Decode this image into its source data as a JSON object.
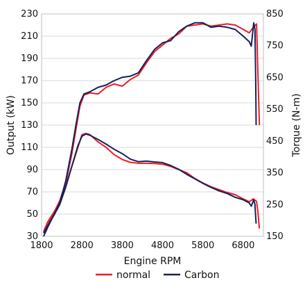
{
  "chart_data": {
    "type": "line",
    "xlabel": "Engine RPM",
    "ylabel_left": "Output (kW)",
    "ylabel_right": "Torque (N-m)",
    "xlim": [
      1800,
      7300
    ],
    "ylim_left": [
      30,
      230
    ],
    "ylim_right": [
      150,
      850
    ],
    "x_ticks": [
      "1800",
      "2800",
      "3800",
      "4800",
      "5800",
      "6800"
    ],
    "y_ticks_left": [
      "30",
      "50",
      "70",
      "90",
      "110",
      "130",
      "150",
      "170",
      "190",
      "210",
      "230"
    ],
    "y_ticks_right": [
      "150",
      "250",
      "350",
      "450",
      "550",
      "650",
      "750",
      "850"
    ],
    "grid": true,
    "legend_position": "bottom",
    "series": [
      {
        "name": "normal",
        "color": "#ee1c25",
        "output_kW": [
          [
            1850,
            33
          ],
          [
            1950,
            40
          ],
          [
            2100,
            51
          ],
          [
            2250,
            62
          ],
          [
            2400,
            78
          ],
          [
            2550,
            104
          ],
          [
            2650,
            126
          ],
          [
            2750,
            147
          ],
          [
            2850,
            157
          ],
          [
            3000,
            159
          ],
          [
            3200,
            158
          ],
          [
            3400,
            164
          ],
          [
            3600,
            167
          ],
          [
            3800,
            165
          ],
          [
            4000,
            171
          ],
          [
            4200,
            175
          ],
          [
            4400,
            186
          ],
          [
            4600,
            196
          ],
          [
            4800,
            202
          ],
          [
            5000,
            208
          ],
          [
            5200,
            212
          ],
          [
            5400,
            219
          ],
          [
            5600,
            220
          ],
          [
            5800,
            221
          ],
          [
            6000,
            219
          ],
          [
            6200,
            220
          ],
          [
            6400,
            221
          ],
          [
            6600,
            220
          ],
          [
            6800,
            216
          ],
          [
            6950,
            213
          ],
          [
            7050,
            218
          ],
          [
            7130,
            221
          ],
          [
            7160,
            180
          ],
          [
            7200,
            130
          ]
        ],
        "torque_Nm": [
          [
            1850,
            165
          ],
          [
            1950,
            195
          ],
          [
            2100,
            225
          ],
          [
            2250,
            258
          ],
          [
            2400,
            310
          ],
          [
            2550,
            370
          ],
          [
            2700,
            430
          ],
          [
            2800,
            470
          ],
          [
            2900,
            474
          ],
          [
            3000,
            470
          ],
          [
            3200,
            447
          ],
          [
            3400,
            430
          ],
          [
            3600,
            407
          ],
          [
            3800,
            392
          ],
          [
            4000,
            383
          ],
          [
            4200,
            380
          ],
          [
            4400,
            380
          ],
          [
            4600,
            379
          ],
          [
            4800,
            377
          ],
          [
            5000,
            370
          ],
          [
            5200,
            360
          ],
          [
            5400,
            350
          ],
          [
            5600,
            332
          ],
          [
            5800,
            318
          ],
          [
            6000,
            306
          ],
          [
            6200,
            297
          ],
          [
            6400,
            288
          ],
          [
            6600,
            281
          ],
          [
            6800,
            268
          ],
          [
            6950,
            259
          ],
          [
            7050,
            268
          ],
          [
            7130,
            260
          ],
          [
            7160,
            230
          ],
          [
            7200,
            175
          ]
        ]
      },
      {
        "name": "Carbon",
        "color": "#14215a",
        "output_kW": [
          [
            1850,
            30
          ],
          [
            1950,
            38
          ],
          [
            2100,
            49
          ],
          [
            2250,
            60
          ],
          [
            2400,
            80
          ],
          [
            2550,
            108
          ],
          [
            2650,
            130
          ],
          [
            2750,
            150
          ],
          [
            2850,
            158
          ],
          [
            3000,
            160
          ],
          [
            3200,
            164
          ],
          [
            3400,
            166
          ],
          [
            3600,
            170
          ],
          [
            3800,
            173
          ],
          [
            4000,
            174
          ],
          [
            4200,
            177
          ],
          [
            4400,
            188
          ],
          [
            4600,
            198
          ],
          [
            4800,
            204
          ],
          [
            5000,
            206
          ],
          [
            5200,
            214
          ],
          [
            5400,
            219
          ],
          [
            5600,
            222
          ],
          [
            5800,
            222
          ],
          [
            6000,
            218
          ],
          [
            6200,
            219
          ],
          [
            6400,
            218
          ],
          [
            6600,
            216
          ],
          [
            6800,
            210
          ],
          [
            6950,
            205
          ],
          [
            7000,
            201
          ],
          [
            7060,
            222
          ],
          [
            7090,
            216
          ],
          [
            7110,
            170
          ],
          [
            7120,
            130
          ]
        ],
        "torque_Nm": [
          [
            1850,
            160
          ],
          [
            1950,
            183
          ],
          [
            2100,
            215
          ],
          [
            2250,
            250
          ],
          [
            2400,
            305
          ],
          [
            2550,
            370
          ],
          [
            2700,
            435
          ],
          [
            2800,
            465
          ],
          [
            2900,
            472
          ],
          [
            3000,
            468
          ],
          [
            3200,
            455
          ],
          [
            3400,
            440
          ],
          [
            3600,
            424
          ],
          [
            3800,
            410
          ],
          [
            4000,
            393
          ],
          [
            4200,
            385
          ],
          [
            4400,
            387
          ],
          [
            4600,
            384
          ],
          [
            4800,
            382
          ],
          [
            5000,
            373
          ],
          [
            5200,
            361
          ],
          [
            5400,
            345
          ],
          [
            5600,
            331
          ],
          [
            5800,
            317
          ],
          [
            6000,
            304
          ],
          [
            6200,
            293
          ],
          [
            6400,
            285
          ],
          [
            6600,
            273
          ],
          [
            6800,
            265
          ],
          [
            6950,
            255
          ],
          [
            7000,
            245
          ],
          [
            7060,
            265
          ],
          [
            7090,
            250
          ],
          [
            7110,
            210
          ],
          [
            7120,
            190
          ]
        ]
      }
    ]
  }
}
